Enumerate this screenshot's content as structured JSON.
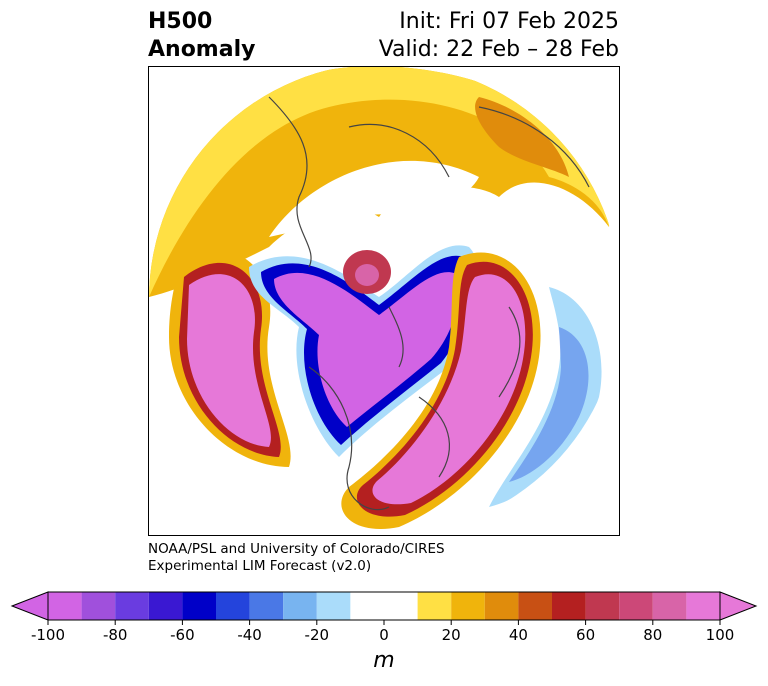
{
  "title": {
    "line1_left": "H500",
    "line2_left": "Anomaly",
    "line1_right": "Init: Fri 07 Feb 2025",
    "line2_right": "Valid: 22 Feb – 28 Feb"
  },
  "credit": {
    "line1": "NOAA/PSL and University of Colorado/CIRES",
    "line2": "Experimental LIM Forecast (v2.0)"
  },
  "colorbar": {
    "unit": "m",
    "levels": [
      -100,
      -90,
      -80,
      -70,
      -60,
      -50,
      -40,
      -30,
      -20,
      -10,
      10,
      20,
      30,
      40,
      50,
      60,
      70,
      80,
      90,
      100
    ],
    "colors": [
      "#d264e4",
      "#a050dc",
      "#6a3ce0",
      "#3a18d2",
      "#0000c8",
      "#2444dc",
      "#4a78e6",
      "#78b4f0",
      "#aadcfa",
      "#ffffff",
      "#ffe044",
      "#f0b40c",
      "#e08c0c",
      "#c85014",
      "#b42020",
      "#c03850",
      "#cc4878",
      "#d864a8",
      "#e678d8"
    ],
    "ticks": [
      "-100",
      "-80",
      "-60",
      "-40",
      "-20",
      "0",
      "20",
      "40",
      "60",
      "80",
      "100"
    ]
  },
  "map": {
    "projection": "north-polar-stereographic",
    "field": "500 hPa geopotential height anomaly"
  }
}
